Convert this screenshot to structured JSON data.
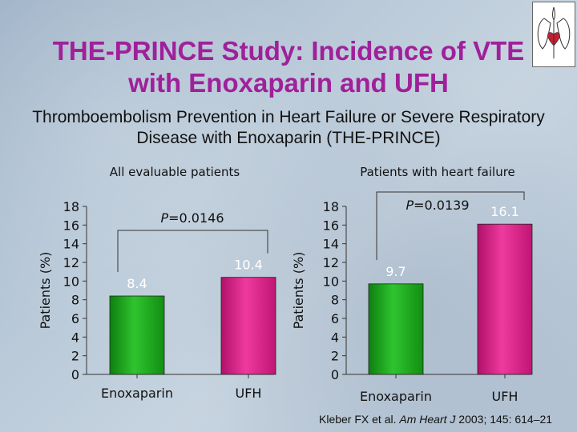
{
  "title": "THE-PRINCE Study: Incidence of VTE with Enoxaparin and UFH",
  "subtitle": "Thromboembolism Prevention in Heart Failure or Severe Respiratory Disease with Enoxaparin (THE-PRINCE)",
  "citation": {
    "authors": "Kleber FX et al.",
    "journal": "Am Heart J",
    "details": "2003; 145: 614–21"
  },
  "logo_icon": "heart-lungs-icon",
  "colors": {
    "title": "#a0209a",
    "enoxaparin": "#1faa1f",
    "ufh": "#e0208a"
  },
  "chart_data": [
    {
      "type": "bar",
      "title": "All evaluable patients",
      "ylabel": "Patients (%)",
      "ylim": [
        0,
        18
      ],
      "yticks": [
        0,
        2,
        4,
        6,
        8,
        10,
        12,
        14,
        16,
        18
      ],
      "categories": [
        "Enoxaparin",
        "UFH"
      ],
      "values": [
        8.4,
        10.4
      ],
      "value_labels": [
        "8.4",
        "10.4"
      ],
      "p_value": {
        "prefix": "P",
        "text": "=0.0146"
      }
    },
    {
      "type": "bar",
      "title": "Patients with heart failure",
      "ylabel": "Patients (%)",
      "ylim": [
        0,
        18
      ],
      "yticks": [
        0,
        2,
        4,
        6,
        8,
        10,
        12,
        14,
        16,
        18
      ],
      "categories": [
        "Enoxaparin",
        "UFH"
      ],
      "values": [
        9.7,
        16.1
      ],
      "value_labels": [
        "9.7",
        "16.1"
      ],
      "p_value": {
        "prefix": "P",
        "text": "=0.0139"
      }
    }
  ]
}
